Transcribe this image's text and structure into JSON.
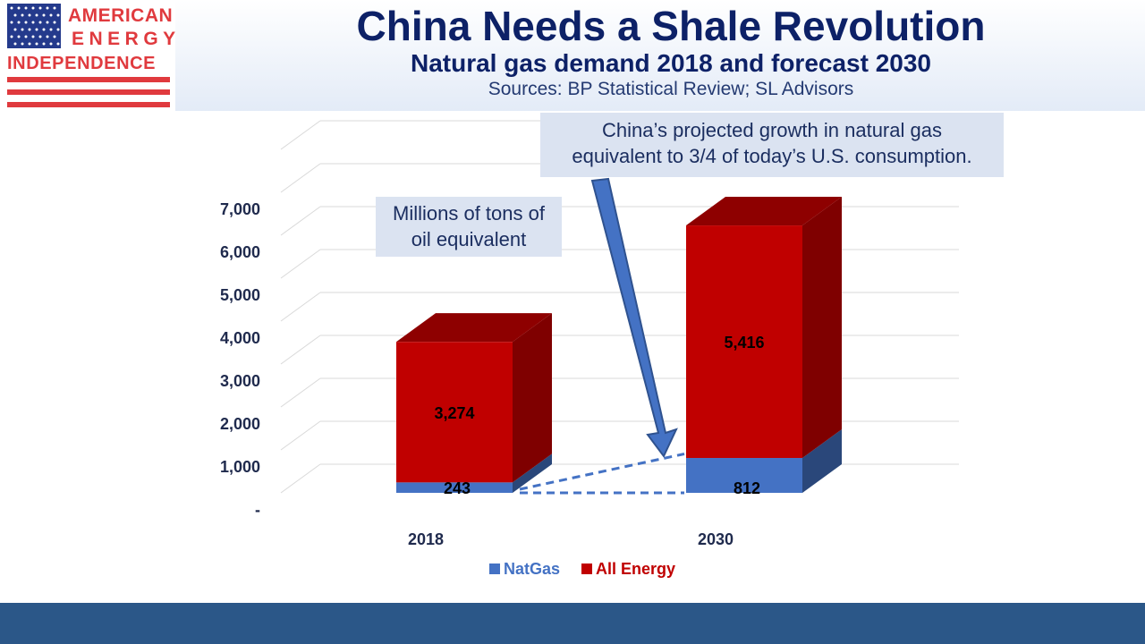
{
  "logo": {
    "line1": "AMERICAN",
    "line2": "ENERGY",
    "line3": "INDEPENDENCE",
    "colors": {
      "red": "#e03a3e",
      "blue": "#243a8c"
    }
  },
  "header": {
    "title": "China Needs a Shale Revolution",
    "subtitle": "Natural gas demand 2018 and forecast 2030",
    "sources": "Sources: BP Statistical Review; SL Advisors"
  },
  "annotations": {
    "unit_line1": "Millions of tons of",
    "unit_line2": "oil equivalent",
    "growth_line1": "China’s projected growth in natural gas",
    "growth_line2": "equivalent to 3/4 of today’s U.S. consumption."
  },
  "chart_data": {
    "type": "bar",
    "stacked": true,
    "three_d": true,
    "categories": [
      "2018",
      "2030"
    ],
    "series": [
      {
        "name": "NatGas",
        "values": [
          243,
          812
        ],
        "color": "#4472c4"
      },
      {
        "name": "All Energy",
        "values": [
          3274,
          5416
        ],
        "color": "#c00000"
      }
    ],
    "ylim": [
      0,
      7000
    ],
    "yticks": [
      0,
      1000,
      2000,
      3000,
      4000,
      5000,
      6000,
      7000
    ],
    "ytick_labels": [
      "-",
      "1,000",
      "2,000",
      "3,000",
      "4,000",
      "5,000",
      "6,000",
      "7,000"
    ],
    "legend_position": "bottom",
    "grid": true,
    "annotations": [
      "Millions of tons of oil equivalent",
      "China’s projected growth in natural gas equivalent to 3/4 of today’s U.S. consumption."
    ]
  }
}
